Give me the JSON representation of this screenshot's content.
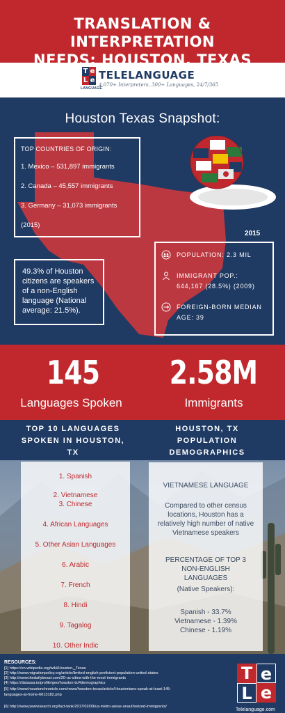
{
  "colors": {
    "red": "#c0282d",
    "navy": "#1f3a63",
    "white": "#ffffff"
  },
  "header": {
    "line1": "TRANSLATION & INTERPRETATION",
    "line2": "NEEDS:  HOUSTON, TEXAS"
  },
  "logo": {
    "letters": [
      "T",
      "e",
      "L",
      "e"
    ],
    "sub": "LANGUAGE",
    "name": "TELELANGUAGE",
    "tagline": "4,070+ Interpreters, 300+ Languages, 24/7/365"
  },
  "snapshot": {
    "title": "Houston Texas Snapshot:",
    "countries": {
      "heading": "TOP COUNTRIES OF ORIGIN:",
      "items": [
        "1. Mexico – 531,897 immigrants",
        "2. Canada – 45,557  immigrants",
        "3. Germany – 31,073 immigrants"
      ],
      "year": "(2015)"
    },
    "year_label": "2015",
    "percent_text": "49.3% of Houston citizens are speakers of a non-English language (National average: 21.5%).",
    "stats": {
      "population": "POPULATION: 2.3 MIL",
      "immigrant": "IMMIGRANT POP.: 644,167 (28.5%) (2009)",
      "median_age": "FOREIGN-BORN MEDIAN AGE: 39"
    }
  },
  "big": {
    "languages_number": "145",
    "languages_label": "Languages Spoken",
    "immigrants_number": "2.58M",
    "immigrants_label": "Immigrants"
  },
  "sections": {
    "left_title": "TOP 10 LANGUAGES SPOKEN IN HOUSTON, TX",
    "right_title": "HOUSTON, TX POPULATION DEMOGRAPHICS"
  },
  "languages": [
    "1. Spanish",
    "2. Vietnamese",
    "3. Chinese",
    "4. African Languages",
    "5. Other Asian Languages",
    "6. Arabic",
    "7. French",
    "8. Hindi",
    "9. Tagalog",
    "10. Other Indic"
  ],
  "demographics": {
    "heading": "VIETNAMESE LANGUAGE",
    "body": "Compared to other census locations, Houston has a relatively high number of native Vietnamese speakers",
    "pct_heading": "PERCENTAGE OF TOP 3 NON-ENGLISH LANGUAGES",
    "pct_sub": "(Native Speakers):",
    "pcts": [
      "Spanish - 33.7%",
      "Vietnamese - 1.39%",
      "Chinese - 1.19%"
    ]
  },
  "resources": {
    "heading": "RESOURCES:",
    "lines": [
      "[1] https://en.wikipedia.org/wiki/Houston,_Texas",
      "[2] http://www.migrationpolicy.org/article/limited-english-proficient-population-united-states",
      "[3] http://www.thedailybeast.com/20-us-cities-with-the-most-immigrants",
      "[4]  https://datausa.io/profile/geo/houston-tx/#demographics",
      "[5]  http://www.houstonchronicle.com/news/houston-texas/article/Houstonians-speak-at-least-145-",
      "languages-at-home-6613182.php",
      "[6]  http://www.pewresearch.org/fact-tank/2017/02/09/us-metro-areas-unauthorized-immigrants/"
    ],
    "logo_letters": [
      "T",
      "e",
      "L",
      "e"
    ],
    "site": "Telelanguage.com"
  }
}
